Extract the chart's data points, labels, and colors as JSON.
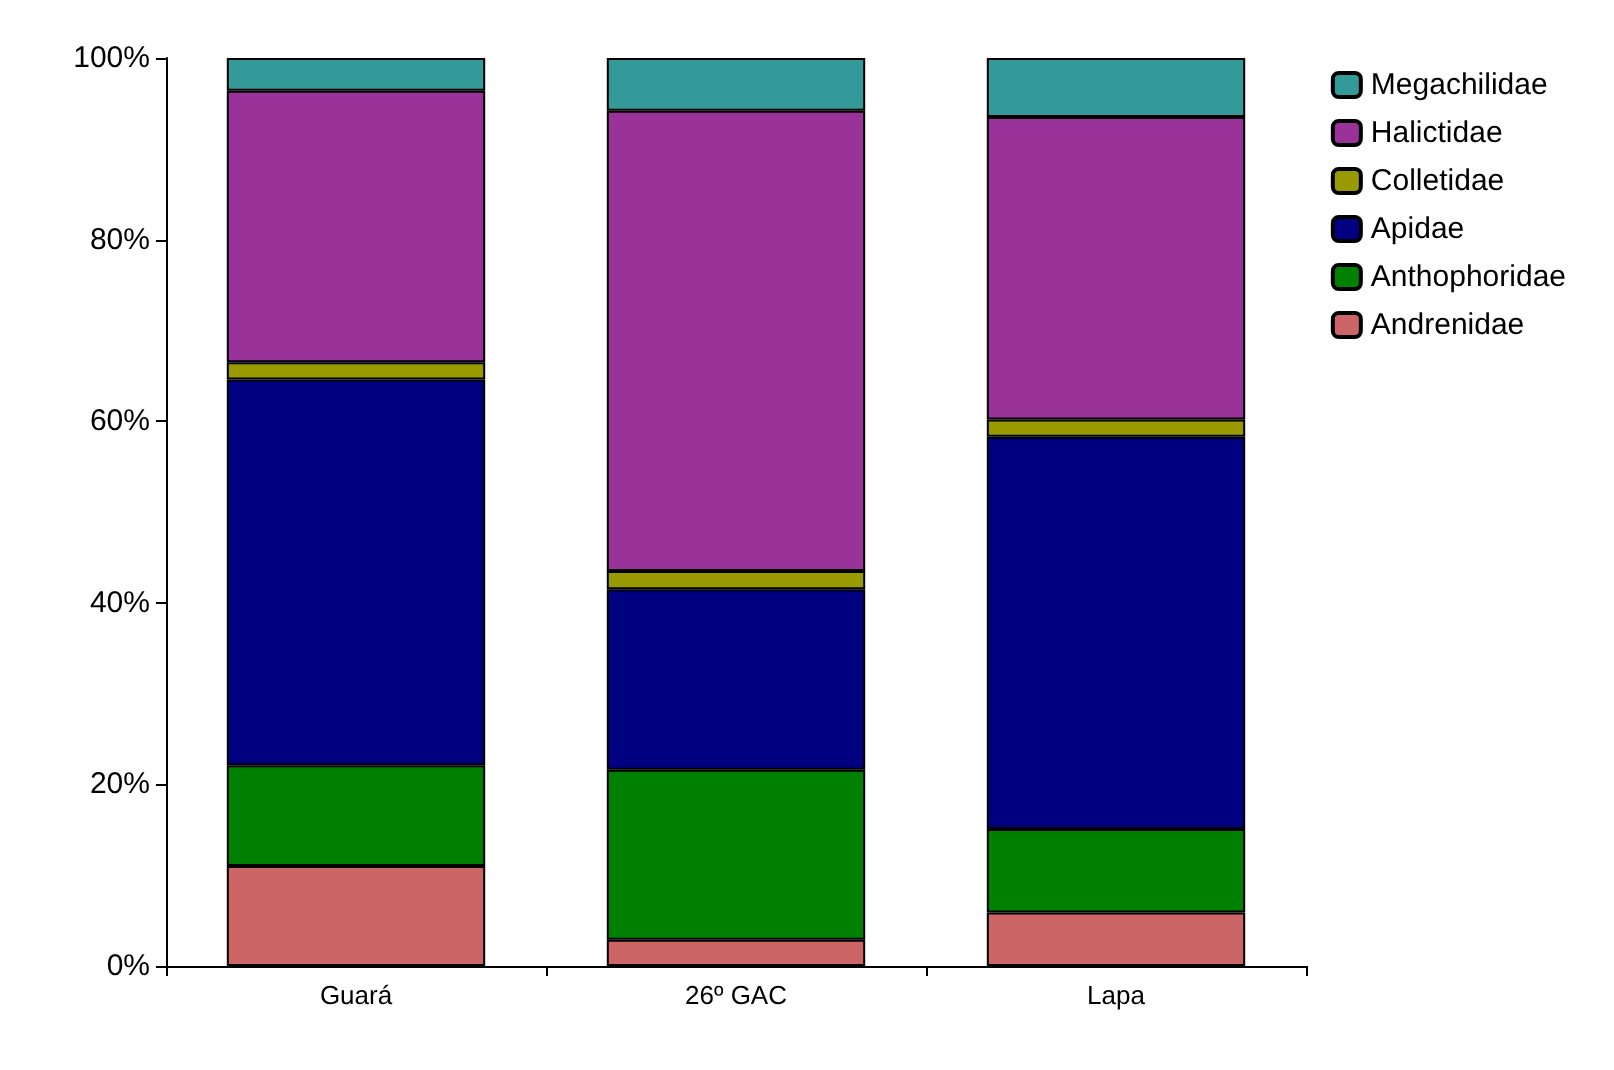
{
  "chart_data": {
    "type": "bar",
    "stacked": true,
    "categories": [
      "Guará",
      "26º GAC",
      "Lapa"
    ],
    "series": [
      {
        "name": "Andrenidae",
        "color": "#cc6666",
        "values": [
          11.0,
          2.9,
          5.9
        ]
      },
      {
        "name": "Anthophoridae",
        "color": "#008000",
        "values": [
          11.1,
          18.7,
          9.2
        ]
      },
      {
        "name": "Apidae",
        "color": "#000080",
        "values": [
          42.5,
          19.9,
          43.2
        ]
      },
      {
        "name": "Colletidae",
        "color": "#999900",
        "values": [
          1.9,
          2.0,
          1.9
        ]
      },
      {
        "name": "Halictidae",
        "color": "#993399",
        "values": [
          29.9,
          50.7,
          33.3
        ]
      },
      {
        "name": "Megachilidae",
        "color": "#339999",
        "values": [
          3.6,
          5.8,
          6.5
        ]
      }
    ],
    "ylim": [
      0,
      100
    ],
    "yticks": [
      {
        "value": 0,
        "label": "0%"
      },
      {
        "value": 20,
        "label": "20%"
      },
      {
        "value": 40,
        "label": "40%"
      },
      {
        "value": 60,
        "label": "60%"
      },
      {
        "value": 80,
        "label": "80%"
      },
      {
        "value": 100,
        "label": "100%"
      }
    ],
    "grid": false,
    "legend": "top right"
  }
}
